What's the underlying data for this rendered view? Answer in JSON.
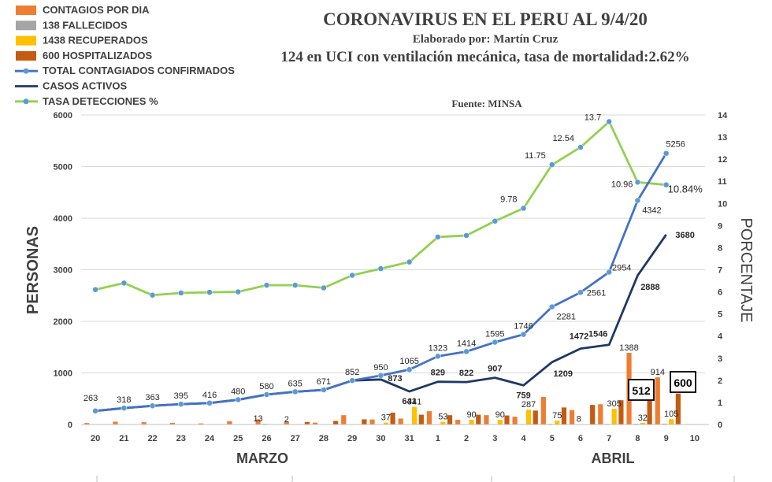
{
  "chart_data": {
    "type": "bar",
    "title": "CORONAVIRUS EN EL PERU AL 9/4/20",
    "subtitle": "Elaborado por: Martín Cruz",
    "subtitle2": "124 en UCI con ventilación mecánica, tasa de mortalidad:2.62%",
    "source": "Fuente: MINSA",
    "ylabel_left": "PERSONAS",
    "ylabel_right": "PORCENTAJE",
    "ylim_left": [
      0,
      6000
    ],
    "ylim_right": [
      0,
      14
    ],
    "yticks_left": [
      "0",
      "1000",
      "2000",
      "3000",
      "4000",
      "5000",
      "6000"
    ],
    "yticks_right": [
      "0",
      "1",
      "2",
      "3",
      "4",
      "5",
      "6",
      "7",
      "8",
      "9",
      "10",
      "11",
      "12",
      "13",
      "14"
    ],
    "categories": [
      "20",
      "21",
      "22",
      "23",
      "24",
      "25",
      "26",
      "27",
      "28",
      "29",
      "30",
      "31",
      "1",
      "2",
      "3",
      "4",
      "5",
      "6",
      "7",
      "8",
      "9",
      "10"
    ],
    "month_labels": [
      "MARZO",
      "ABRIL"
    ],
    "grid": "horizontal",
    "legend_position": "top-left",
    "colors": {
      "contagios": "#ED7D31",
      "fallecidos": "#A5A5A5",
      "recuperados": "#FFC000",
      "hospitalizados": "#C55A11",
      "total": "#4472C4",
      "activos": "#1F3864",
      "tasa": "#92D050",
      "markers": "#5B9BD5"
    },
    "series": [
      {
        "name": "CONTAGIOS POR DIA",
        "type": "bar",
        "axis": "left",
        "values": [
          29,
          55,
          45,
          32,
          21,
          64,
          100,
          55,
          36,
          181,
          98,
          115,
          258,
          91,
          181,
          151,
          535,
          280,
          393,
          1388,
          914,
          null
        ]
      },
      {
        "name": "138 FALLECIDOS",
        "type": "bar",
        "axis": "left",
        "values": [
          0,
          0,
          0,
          0,
          0,
          0,
          13,
          2,
          4,
          3,
          1,
          2,
          6,
          8,
          7,
          9,
          12,
          8,
          11,
          14,
          17,
          null
        ]
      },
      {
        "name": "1438 RECUPERADOS",
        "type": "bar",
        "axis": "left",
        "values": [
          0,
          0,
          0,
          0,
          0,
          0,
          0,
          0,
          0,
          0,
          37,
          341,
          53,
          90,
          90,
          287,
          75,
          8,
          305,
          32,
          105,
          null
        ]
      },
      {
        "name": "600 HOSPITALIZADOS",
        "type": "bar",
        "axis": "left",
        "values": [
          0,
          0,
          0,
          0,
          0,
          0,
          0,
          50,
          70,
          100,
          230,
          190,
          180,
          190,
          175,
          270,
          330,
          380,
          470,
          512,
          600,
          null
        ]
      },
      {
        "name": "TOTAL CONTAGIADOS CONFIRMADOS",
        "type": "line",
        "axis": "left",
        "values": [
          263,
          318,
          363,
          395,
          416,
          480,
          580,
          635,
          671,
          852,
          950,
          1065,
          1323,
          1414,
          1595,
          1746,
          2281,
          2561,
          2954,
          4342,
          5256,
          null
        ]
      },
      {
        "name": "CASOS ACTIVOS",
        "type": "line",
        "axis": "left",
        "values": [
          263,
          318,
          363,
          395,
          416,
          480,
          580,
          635,
          671,
          852,
          873,
          641,
          829,
          822,
          907,
          759,
          1209,
          1472,
          1546,
          2888,
          3680,
          null
        ]
      },
      {
        "name": "TASA DETECCIONES %",
        "type": "line",
        "axis": "right",
        "values": [
          6.1,
          6.4,
          5.85,
          5.95,
          5.98,
          6.0,
          6.3,
          6.3,
          6.18,
          6.75,
          7.05,
          7.35,
          8.48,
          8.55,
          9.2,
          9.78,
          11.75,
          12.54,
          13.7,
          10.96,
          10.84,
          null
        ]
      }
    ],
    "data_labels": {
      "total": [
        "263",
        "318",
        "363",
        "395",
        "416",
        "480",
        "580",
        "635",
        "671",
        "852",
        "950",
        "1065",
        "1323",
        "1414",
        "1595",
        "1746",
        "2281",
        "2561",
        "2954",
        "4342",
        "5256"
      ],
      "activos": [
        "873",
        "641",
        "829",
        "822",
        "907",
        "759",
        "1209",
        "1472",
        "1546",
        "2888",
        "3680"
      ],
      "tasa": [
        "9.78",
        "11.75",
        "12.54",
        "13.7",
        "10.96",
        "10.84%"
      ],
      "bars": [
        "13",
        "2",
        "37",
        "341",
        "53",
        "90",
        "90",
        "287",
        "75",
        "8",
        "305",
        "1388",
        "32",
        "914",
        "105"
      ],
      "boxed": [
        "512",
        "600"
      ]
    }
  }
}
